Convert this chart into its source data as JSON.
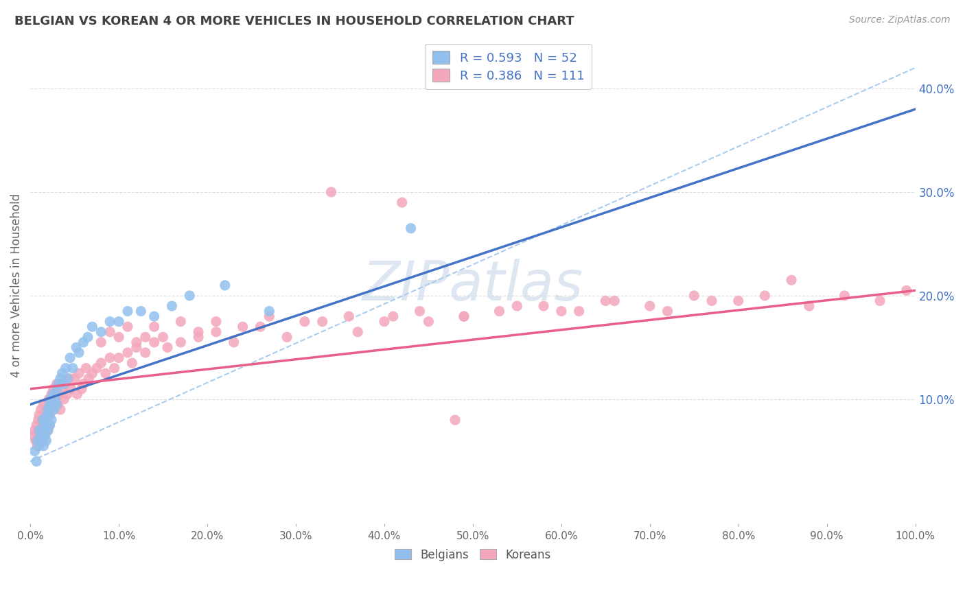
{
  "title": "BELGIAN VS KOREAN 4 OR MORE VEHICLES IN HOUSEHOLD CORRELATION CHART",
  "source": "Source: ZipAtlas.com",
  "ylabel": "4 or more Vehicles in Household",
  "xlim": [
    0,
    1.0
  ],
  "ylim": [
    -0.02,
    0.44
  ],
  "xticks": [
    0.0,
    0.1,
    0.2,
    0.3,
    0.4,
    0.5,
    0.6,
    0.7,
    0.8,
    0.9,
    1.0
  ],
  "yticks_right": [
    0.1,
    0.2,
    0.3,
    0.4
  ],
  "belgian_R": 0.593,
  "belgian_N": 52,
  "korean_R": 0.386,
  "korean_N": 111,
  "belgian_color": "#92C0ED",
  "korean_color": "#F4A7BB",
  "belgian_line_color": "#4472C4",
  "korean_line_color": "#E8608A",
  "dash_line_color": "#AACCEE",
  "title_color": "#404040",
  "source_color": "#999999",
  "right_tick_color": "#4472C4",
  "background_color": "#FFFFFF",
  "grid_color": "#DDDDDD",
  "watermark_color": "#C8D8E8",
  "belgian_x": [
    0.005,
    0.007,
    0.008,
    0.01,
    0.01,
    0.012,
    0.013,
    0.014,
    0.015,
    0.015,
    0.016,
    0.017,
    0.018,
    0.018,
    0.019,
    0.02,
    0.02,
    0.021,
    0.022,
    0.022,
    0.023,
    0.024,
    0.025,
    0.026,
    0.027,
    0.028,
    0.03,
    0.03,
    0.032,
    0.034,
    0.036,
    0.038,
    0.04,
    0.042,
    0.045,
    0.048,
    0.052,
    0.055,
    0.06,
    0.065,
    0.07,
    0.08,
    0.09,
    0.1,
    0.11,
    0.125,
    0.14,
    0.16,
    0.18,
    0.22,
    0.27,
    0.43
  ],
  "belgian_y": [
    0.05,
    0.04,
    0.06,
    0.07,
    0.055,
    0.065,
    0.06,
    0.08,
    0.07,
    0.055,
    0.075,
    0.065,
    0.08,
    0.06,
    0.085,
    0.09,
    0.07,
    0.085,
    0.095,
    0.075,
    0.1,
    0.08,
    0.095,
    0.105,
    0.09,
    0.1,
    0.11,
    0.095,
    0.115,
    0.12,
    0.125,
    0.115,
    0.13,
    0.12,
    0.14,
    0.13,
    0.15,
    0.145,
    0.155,
    0.16,
    0.17,
    0.165,
    0.175,
    0.175,
    0.185,
    0.185,
    0.18,
    0.19,
    0.2,
    0.21,
    0.185,
    0.265
  ],
  "korean_x": [
    0.003,
    0.005,
    0.006,
    0.007,
    0.008,
    0.009,
    0.01,
    0.01,
    0.011,
    0.012,
    0.013,
    0.014,
    0.015,
    0.015,
    0.016,
    0.016,
    0.017,
    0.018,
    0.018,
    0.019,
    0.02,
    0.02,
    0.021,
    0.022,
    0.022,
    0.023,
    0.024,
    0.025,
    0.026,
    0.027,
    0.028,
    0.03,
    0.031,
    0.033,
    0.034,
    0.036,
    0.038,
    0.04,
    0.042,
    0.044,
    0.046,
    0.05,
    0.053,
    0.055,
    0.058,
    0.06,
    0.063,
    0.066,
    0.07,
    0.075,
    0.08,
    0.085,
    0.09,
    0.095,
    0.1,
    0.11,
    0.115,
    0.12,
    0.13,
    0.14,
    0.155,
    0.17,
    0.19,
    0.21,
    0.23,
    0.26,
    0.29,
    0.33,
    0.37,
    0.41,
    0.45,
    0.49,
    0.53,
    0.58,
    0.62,
    0.66,
    0.72,
    0.77,
    0.83,
    0.88,
    0.92,
    0.96,
    0.99,
    0.34,
    0.42,
    0.48,
    0.08,
    0.09,
    0.1,
    0.11,
    0.12,
    0.13,
    0.14,
    0.15,
    0.17,
    0.19,
    0.21,
    0.24,
    0.27,
    0.31,
    0.36,
    0.4,
    0.44,
    0.49,
    0.55,
    0.6,
    0.65,
    0.7,
    0.75,
    0.8,
    0.86
  ],
  "korean_y": [
    0.065,
    0.07,
    0.06,
    0.075,
    0.055,
    0.08,
    0.085,
    0.065,
    0.07,
    0.09,
    0.075,
    0.06,
    0.095,
    0.08,
    0.07,
    0.065,
    0.085,
    0.09,
    0.075,
    0.08,
    0.095,
    0.07,
    0.1,
    0.085,
    0.075,
    0.095,
    0.105,
    0.09,
    0.11,
    0.095,
    0.1,
    0.115,
    0.095,
    0.105,
    0.09,
    0.11,
    0.1,
    0.115,
    0.105,
    0.12,
    0.11,
    0.12,
    0.105,
    0.125,
    0.11,
    0.115,
    0.13,
    0.12,
    0.125,
    0.13,
    0.135,
    0.125,
    0.14,
    0.13,
    0.14,
    0.145,
    0.135,
    0.15,
    0.145,
    0.155,
    0.15,
    0.155,
    0.16,
    0.165,
    0.155,
    0.17,
    0.16,
    0.175,
    0.165,
    0.18,
    0.175,
    0.18,
    0.185,
    0.19,
    0.185,
    0.195,
    0.185,
    0.195,
    0.2,
    0.19,
    0.2,
    0.195,
    0.205,
    0.3,
    0.29,
    0.08,
    0.155,
    0.165,
    0.16,
    0.17,
    0.155,
    0.16,
    0.17,
    0.16,
    0.175,
    0.165,
    0.175,
    0.17,
    0.18,
    0.175,
    0.18,
    0.175,
    0.185,
    0.18,
    0.19,
    0.185,
    0.195,
    0.19,
    0.2,
    0.195,
    0.215
  ],
  "belgian_line": [
    0.0,
    1.0,
    0.095,
    0.38
  ],
  "korean_line": [
    0.0,
    1.0,
    0.11,
    0.205
  ],
  "dash_line": [
    0.0,
    1.0,
    0.04,
    0.42
  ]
}
